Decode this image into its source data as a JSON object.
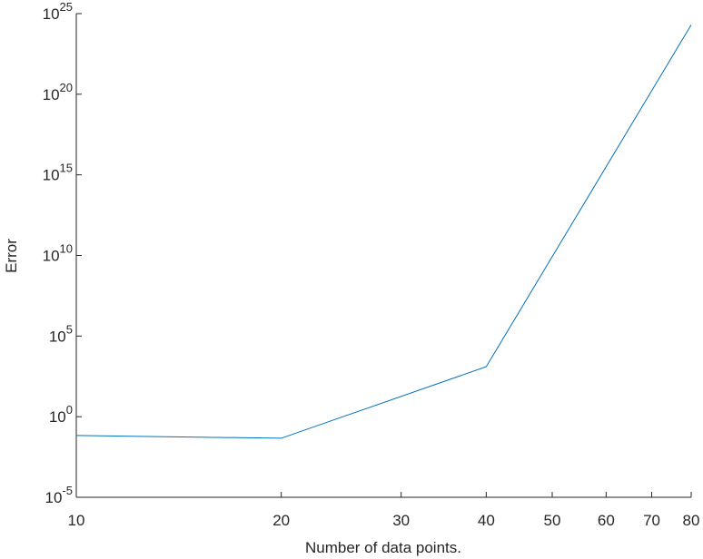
{
  "chart_data": {
    "type": "line",
    "x_label": "Number of data points.",
    "y_label": "Error",
    "x": [
      10,
      20,
      40,
      80
    ],
    "values": [
      0.068,
      0.046,
      1260,
      2e+24
    ],
    "color": "#0072bd",
    "xscale": "log",
    "yscale": "log",
    "xlim": [
      10,
      80
    ],
    "ylim": [
      1e-05,
      1e+25
    ],
    "xticks": [
      10,
      20,
      30,
      40,
      50,
      60,
      70,
      80
    ],
    "yticks": [
      {
        "value": 1e-05,
        "label": "10",
        "exponent": "-5"
      },
      {
        "value": 1,
        "label": "10",
        "exponent": "0"
      },
      {
        "value": 100000.0,
        "label": "10",
        "exponent": "5"
      },
      {
        "value": 10000000000.0,
        "label": "10",
        "exponent": "10"
      },
      {
        "value": 1000000000000000.0,
        "label": "10",
        "exponent": "15"
      },
      {
        "value": 1e+20,
        "label": "10",
        "exponent": "20"
      },
      {
        "value": 1e+25,
        "label": "10",
        "exponent": "25"
      }
    ]
  }
}
